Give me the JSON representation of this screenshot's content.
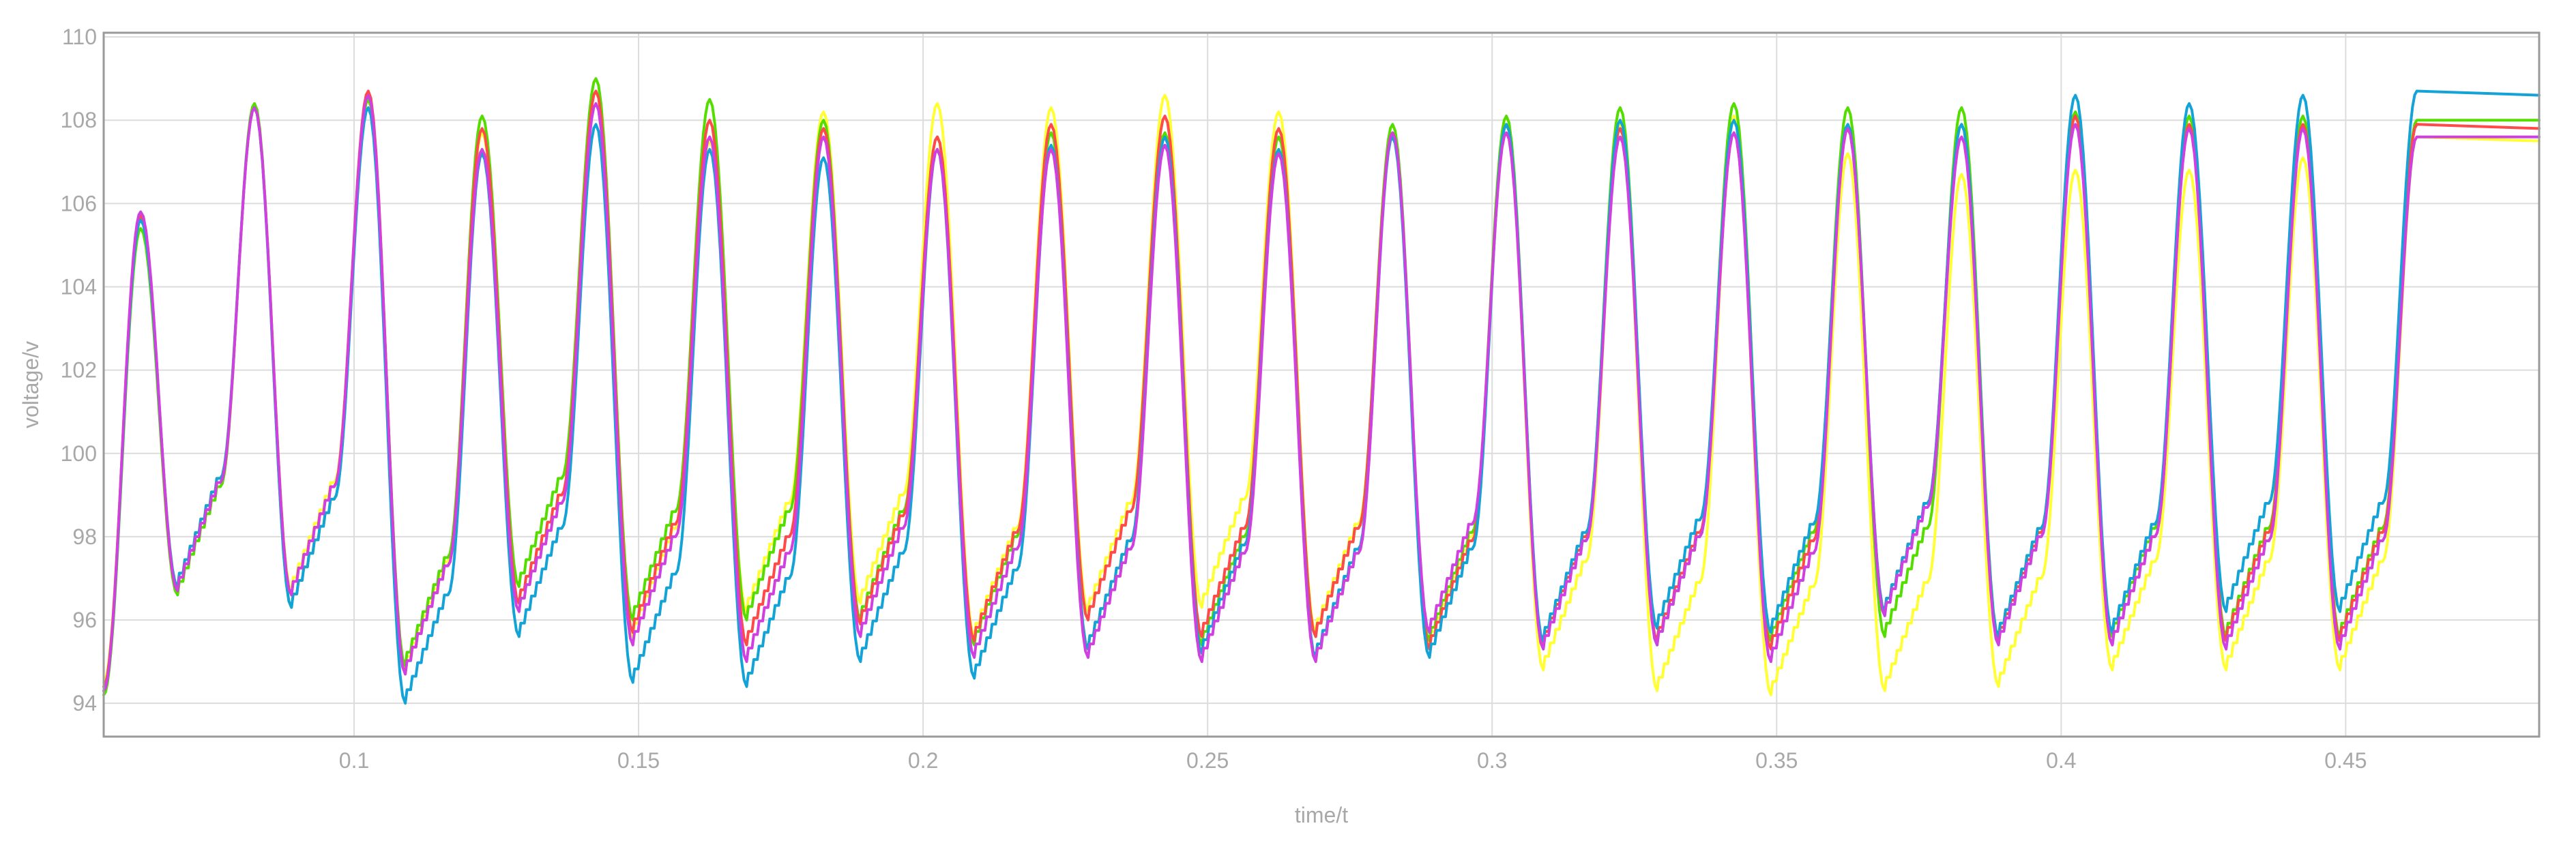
{
  "chart_data": {
    "type": "line",
    "title": "",
    "xlabel": "time/t",
    "ylabel": "voltage/v",
    "xlim": [
      0.056,
      0.484
    ],
    "ylim": [
      93.2,
      110.1
    ],
    "grid": true,
    "legend": "none",
    "x_ticks": [
      0.1,
      0.15,
      0.2,
      0.25,
      0.3,
      0.35,
      0.4,
      0.45
    ],
    "x_tick_labels": [
      "0.1",
      "0.15",
      "0.2",
      "0.25",
      "0.3",
      "0.35",
      "0.4",
      "0.45"
    ],
    "y_ticks": [
      94,
      96,
      98,
      100,
      102,
      104,
      106,
      108,
      110
    ],
    "y_tick_labels": [
      "94",
      "96",
      "98",
      "100",
      "102",
      "104",
      "106",
      "108",
      "110"
    ],
    "period": 0.02,
    "series": [
      {
        "color": "#ffff33",
        "start": [
          0.056,
          94.5
        ],
        "first_peak": [
          0.0625,
          105.6
        ],
        "peaks": [
          108.3,
          108.6,
          107.7,
          108.7,
          107.5,
          108.2,
          108.4,
          108.3,
          108.6,
          108.2,
          107.6,
          107.9,
          107.9,
          108.1,
          107.2,
          106.7,
          106.8,
          106.8,
          107.1,
          107.6
        ],
        "troughs": [
          96.8,
          96.7,
          94.8,
          96.4,
          95.6,
          96.2,
          96.4,
          95.6,
          96.2,
          96.3,
          95.7,
          95.4,
          94.8,
          94.3,
          94.2,
          94.3,
          94.4,
          94.8,
          94.8
        ],
        "end_value": 107.5
      },
      {
        "color": "#55dd00",
        "start": [
          0.056,
          94.2
        ],
        "first_peak": [
          0.0625,
          105.4
        ],
        "peaks": [
          108.4,
          108.5,
          108.1,
          109.0,
          108.5,
          108.0,
          107.6,
          107.7,
          107.7,
          107.6,
          107.9,
          108.1,
          108.3,
          108.4,
          108.3,
          108.3,
          108.2,
          108.1,
          108.1,
          108.0
        ],
        "troughs": [
          96.6,
          96.3,
          94.9,
          96.8,
          96.0,
          96.0,
          96.0,
          95.4,
          95.3,
          95.4,
          95.6,
          95.5,
          95.4,
          95.4,
          95.5,
          95.6,
          95.6,
          95.6,
          95.6
        ],
        "end_value": 108.0
      },
      {
        "color": "#ff4a4a",
        "start": [
          0.056,
          94.4
        ],
        "first_peak": [
          0.0625,
          105.7
        ],
        "peaks": [
          108.3,
          108.7,
          107.8,
          108.7,
          108.0,
          107.8,
          107.6,
          107.9,
          108.1,
          107.8,
          107.7,
          107.9,
          107.8,
          107.7,
          107.8,
          107.9,
          108.1,
          107.9,
          107.9,
          107.9
        ],
        "troughs": [
          96.7,
          96.6,
          94.7,
          96.4,
          95.7,
          95.4,
          95.9,
          95.5,
          96.0,
          95.6,
          95.6,
          95.3,
          95.4,
          95.5,
          95.3,
          96.2,
          95.5,
          95.4,
          95.5
        ],
        "end_value": 107.8
      },
      {
        "color": "#13a3d6",
        "start": [
          0.056,
          94.3
        ],
        "first_peak": [
          0.0625,
          105.6
        ],
        "peaks": [
          108.3,
          108.3,
          107.2,
          107.9,
          107.3,
          107.1,
          107.3,
          107.4,
          107.6,
          107.3,
          107.6,
          107.9,
          108.0,
          108.0,
          107.9,
          107.9,
          108.6,
          108.4,
          108.6,
          108.7
        ],
        "troughs": [
          96.8,
          96.3,
          94.0,
          95.6,
          94.5,
          94.4,
          95.0,
          94.6,
          95.3,
          95.2,
          95.1,
          95.1,
          95.5,
          95.8,
          95.7,
          96.2,
          95.6,
          95.7,
          96.2
        ],
        "end_value": 108.6
      },
      {
        "color": "#d040e0",
        "start": [
          0.056,
          94.3
        ],
        "first_peak": [
          0.0625,
          105.8
        ],
        "peaks": [
          108.3,
          108.6,
          107.3,
          108.4,
          107.6,
          107.6,
          107.3,
          107.3,
          107.4,
          107.2,
          107.7,
          107.7,
          107.6,
          107.7,
          107.8,
          107.6,
          107.9,
          107.8,
          107.8,
          107.6
        ],
        "troughs": [
          96.7,
          96.6,
          94.7,
          96.2,
          95.4,
          95.0,
          95.6,
          95.1,
          95.1,
          95.0,
          95.0,
          95.7,
          95.3,
          95.4,
          95.0,
          96.1,
          95.4,
          95.4,
          95.3
        ],
        "end_value": 107.6
      }
    ]
  }
}
